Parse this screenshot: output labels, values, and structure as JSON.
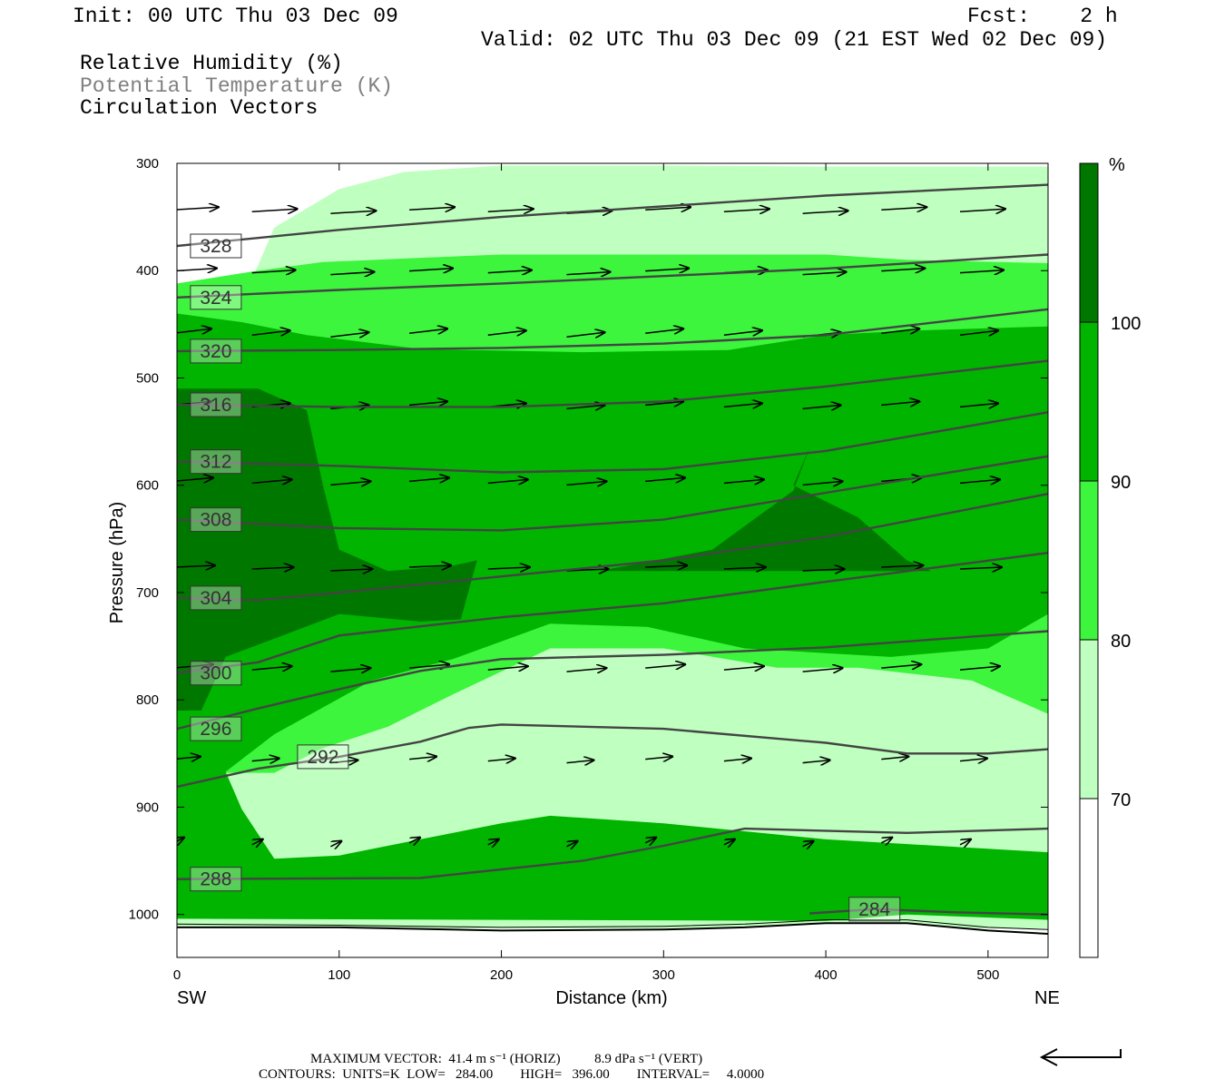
{
  "header": {
    "init": "Init: 00 UTC Thu 03 Dec 09",
    "fcst": "Fcst:    2 h",
    "valid": "Valid: 02 UTC Thu 03 Dec 09 (21 EST Wed 02 Dec 09)",
    "field1": "Relative Humidity (%)",
    "field2": "Potential Temperature (K)",
    "field3": "Circulation Vectors"
  },
  "footer": {
    "max_vector": "MAXIMUM VECTOR:  41.4 m s⁻¹ (HORIZ)          8.9 dPa s⁻¹ (VERT)",
    "contours": "CONTOURS:  UNITS=K  LOW=   284.00        HIGH=   396.00        INTERVAL=     4.0000"
  },
  "colors": {
    "rh_70_80": "#bfffbf",
    "rh_80_90": "#3cf53c",
    "rh_90_100": "#00b400",
    "rh_100": "#007800",
    "theta_line": "#444444"
  },
  "chart_data": {
    "type": "cross-section",
    "xlabel": "Distance (km)",
    "ylabel": "Pressure (hPa)",
    "xlim": [
      0,
      537
    ],
    "ylim": [
      1040,
      300
    ],
    "x_ticks": [
      "0",
      "100",
      "200",
      "300",
      "400",
      "500"
    ],
    "y_ticks": [
      "300",
      "400",
      "500",
      "600",
      "700",
      "800",
      "900",
      "1000"
    ],
    "left_end_label": "SW",
    "right_end_label": "NE",
    "colorbar": {
      "unit": "%",
      "levels": [
        "70",
        "80",
        "90",
        "100"
      ]
    },
    "theta_contours": [
      {
        "label": "328",
        "pts": [
          [
            0,
            377
          ],
          [
            100,
            362
          ],
          [
            200,
            350
          ],
          [
            300,
            340
          ],
          [
            400,
            330
          ],
          [
            537,
            320
          ]
        ]
      },
      {
        "label": "324",
        "pts": [
          [
            0,
            425
          ],
          [
            100,
            418
          ],
          [
            200,
            412
          ],
          [
            300,
            405
          ],
          [
            400,
            398
          ],
          [
            537,
            385
          ]
        ]
      },
      {
        "label": "320",
        "pts": [
          [
            0,
            475
          ],
          [
            100,
            474
          ],
          [
            200,
            472
          ],
          [
            300,
            468
          ],
          [
            400,
            460
          ],
          [
            537,
            436
          ]
        ]
      },
      {
        "label": "316",
        "pts": [
          [
            0,
            525
          ],
          [
            100,
            527
          ],
          [
            200,
            527
          ],
          [
            300,
            522
          ],
          [
            400,
            508
          ],
          [
            537,
            484
          ]
        ]
      },
      {
        "label": "312",
        "pts": [
          [
            0,
            578
          ],
          [
            100,
            582
          ],
          [
            200,
            588
          ],
          [
            300,
            585
          ],
          [
            400,
            568
          ],
          [
            537,
            532
          ]
        ]
      },
      {
        "label": "308",
        "pts": [
          [
            0,
            632
          ],
          [
            100,
            640
          ],
          [
            200,
            642
          ],
          [
            300,
            632
          ],
          [
            400,
            607
          ],
          [
            537,
            573
          ]
        ]
      },
      {
        "label": "304",
        "pts": [
          [
            0,
            705
          ],
          [
            50,
            707
          ],
          [
            100,
            700
          ],
          [
            200,
            685
          ],
          [
            300,
            670
          ],
          [
            400,
            648
          ],
          [
            537,
            608
          ]
        ]
      },
      {
        "label": "300",
        "pts": [
          [
            0,
            775
          ],
          [
            50,
            765
          ],
          [
            100,
            740
          ],
          [
            200,
            723
          ],
          [
            300,
            710
          ],
          [
            400,
            690
          ],
          [
            537,
            663
          ]
        ]
      },
      {
        "label": "296",
        "pts": [
          [
            0,
            827
          ],
          [
            50,
            808
          ],
          [
            100,
            790
          ],
          [
            150,
            773
          ],
          [
            200,
            762
          ],
          [
            300,
            758
          ],
          [
            400,
            751
          ],
          [
            537,
            736
          ]
        ]
      },
      {
        "label": "292",
        "pts": [
          [
            0,
            881
          ],
          [
            50,
            864
          ],
          [
            100,
            853
          ],
          [
            150,
            839
          ],
          [
            180,
            826
          ],
          [
            200,
            823
          ],
          [
            300,
            827
          ],
          [
            400,
            840
          ],
          [
            450,
            850
          ],
          [
            500,
            850
          ],
          [
            537,
            846
          ]
        ]
      },
      {
        "label": "288",
        "pts": [
          [
            0,
            967
          ],
          [
            150,
            966
          ],
          [
            250,
            950
          ],
          [
            300,
            936
          ],
          [
            350,
            920
          ],
          [
            450,
            924
          ],
          [
            537,
            920
          ]
        ]
      },
      {
        "label": "284",
        "pts": [
          [
            390,
            999
          ],
          [
            430,
            995
          ],
          [
            480,
            998
          ],
          [
            537,
            1000
          ]
        ]
      }
    ],
    "rh_regions": [
      {
        "category": "70-80",
        "pts": [
          [
            0,
            452
          ],
          [
            40,
            430
          ],
          [
            60,
            360
          ],
          [
            100,
            324
          ],
          [
            140,
            308
          ],
          [
            200,
            302
          ],
          [
            300,
            302
          ],
          [
            400,
            303
          ],
          [
            537,
            303
          ],
          [
            537,
            1013
          ],
          [
            0,
            1013
          ]
        ]
      },
      {
        "category": "80-90",
        "pts": [
          [
            0,
            412
          ],
          [
            50,
            400
          ],
          [
            90,
            392
          ],
          [
            150,
            388
          ],
          [
            200,
            385
          ],
          [
            300,
            385
          ],
          [
            400,
            385
          ],
          [
            450,
            390
          ],
          [
            537,
            393
          ],
          [
            537,
            813
          ],
          [
            490,
            782
          ],
          [
            420,
            770
          ],
          [
            370,
            770
          ],
          [
            300,
            752
          ],
          [
            230,
            752
          ],
          [
            170,
            795
          ],
          [
            130,
            825
          ],
          [
            90,
            845
          ],
          [
            60,
            868
          ],
          [
            0,
            868
          ]
        ]
      },
      {
        "category": "90-100",
        "pts": [
          [
            0,
            440
          ],
          [
            40,
            448
          ],
          [
            80,
            460
          ],
          [
            150,
            473
          ],
          [
            250,
            476
          ],
          [
            340,
            474
          ],
          [
            400,
            460
          ],
          [
            450,
            456
          ],
          [
            537,
            452
          ],
          [
            537,
            720
          ],
          [
            500,
            752
          ],
          [
            440,
            760
          ],
          [
            350,
            752
          ],
          [
            290,
            732
          ],
          [
            230,
            729
          ],
          [
            170,
            762
          ],
          [
            120,
            782
          ],
          [
            60,
            832
          ],
          [
            30,
            867
          ],
          [
            40,
            902
          ],
          [
            60,
            948
          ],
          [
            100,
            945
          ],
          [
            150,
            930
          ],
          [
            200,
            915
          ],
          [
            230,
            908
          ],
          [
            300,
            915
          ],
          [
            400,
            930
          ],
          [
            537,
            942
          ],
          [
            537,
            1005
          ],
          [
            450,
            1000
          ],
          [
            400,
            1006
          ],
          [
            200,
            1005
          ],
          [
            0,
            1004
          ]
        ]
      },
      {
        "category": "100+",
        "pts": [
          [
            0,
            510
          ],
          [
            50,
            510
          ],
          [
            80,
            530
          ],
          [
            90,
            600
          ],
          [
            100,
            660
          ],
          [
            130,
            680
          ],
          [
            170,
            675
          ],
          [
            185,
            670
          ],
          [
            175,
            725
          ],
          [
            150,
            727
          ],
          [
            100,
            720
          ],
          [
            60,
            743
          ],
          [
            30,
            760
          ],
          [
            15,
            810
          ],
          [
            0,
            810
          ]
        ]
      },
      {
        "category": "100+",
        "pts": [
          [
            260,
            680
          ],
          [
            330,
            660
          ],
          [
            380,
            605
          ],
          [
            390,
            565
          ],
          [
            380,
            600
          ],
          [
            420,
            630
          ],
          [
            450,
            670
          ],
          [
            465,
            680
          ],
          [
            300,
            680
          ]
        ]
      }
    ]
  }
}
